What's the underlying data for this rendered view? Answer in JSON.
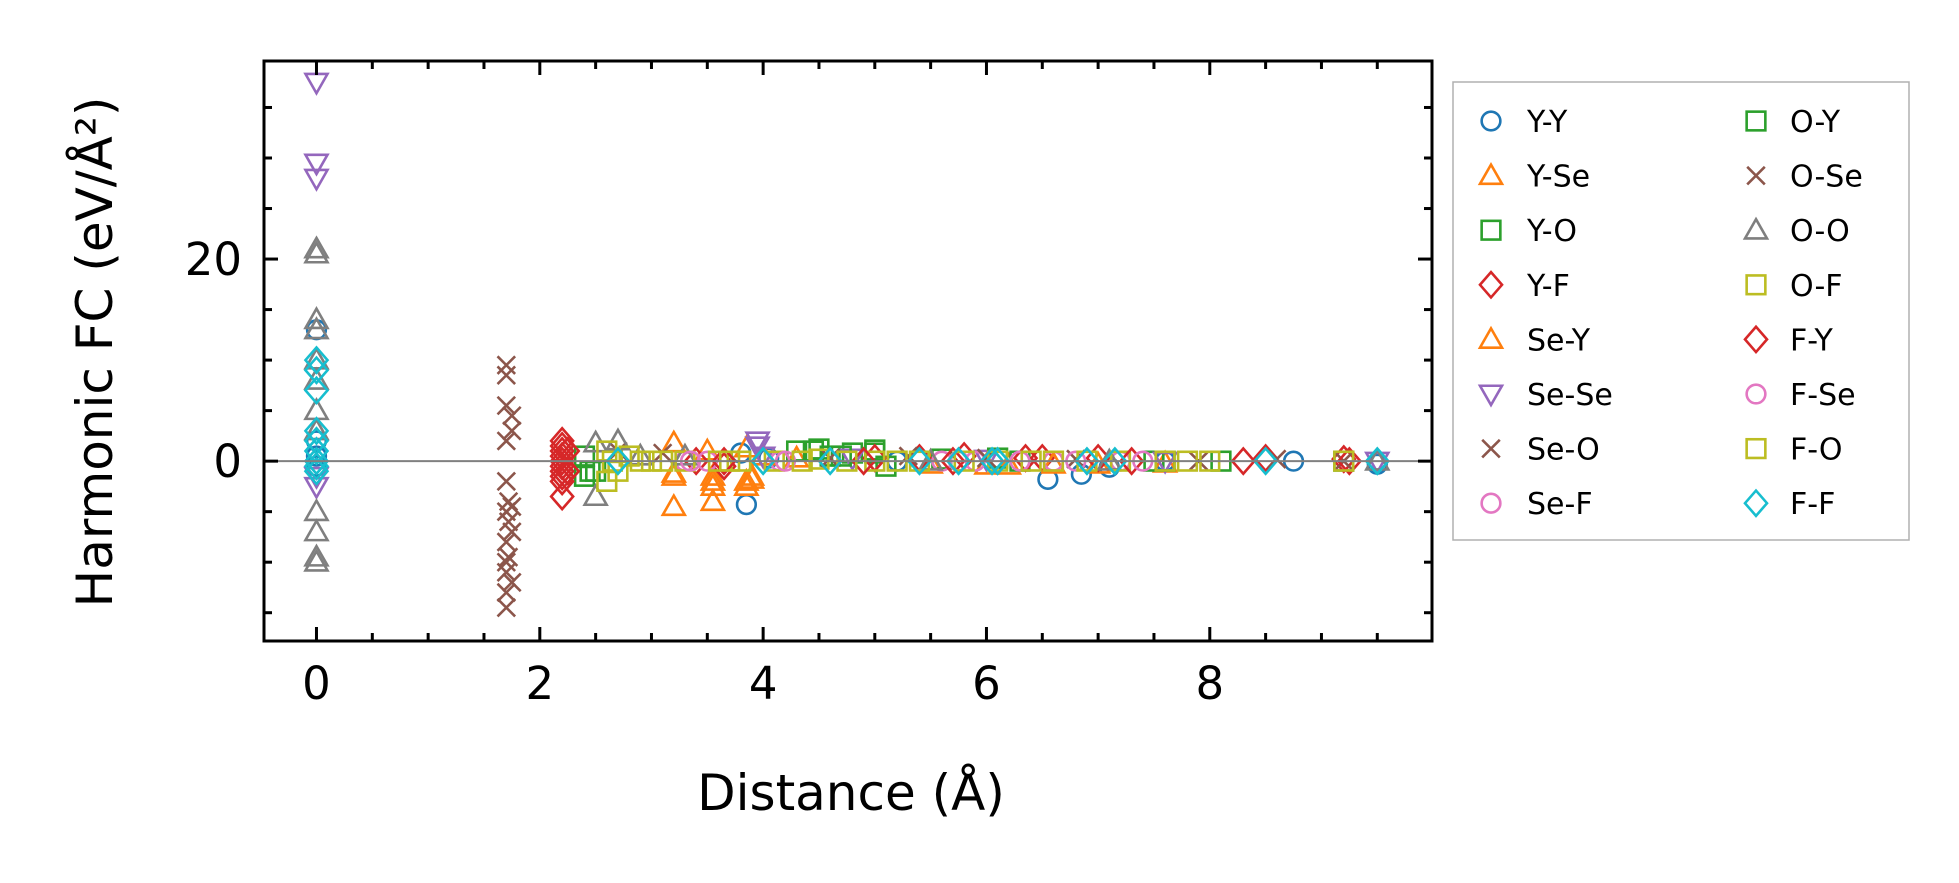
{
  "chart_data": {
    "type": "scatter",
    "title": "",
    "xlabel": "Distance (Å)",
    "ylabel": "Harmonic FC (eV/Å²)",
    "xlim": [
      -0.47,
      9.99
    ],
    "ylim": [
      -17.8,
      39.6
    ],
    "xticks": [
      0,
      2,
      4,
      6,
      8
    ],
    "xtick_labels": [
      "0",
      "2",
      "4",
      "6",
      "8"
    ],
    "yticks": [
      0,
      20
    ],
    "ytick_labels": [
      "0",
      "20"
    ],
    "x_minor_step": 0.5,
    "y_minor_step": 5,
    "zero_line": true,
    "grid": false,
    "legend_position": "outside-right",
    "series": [
      {
        "name": "Y-Y",
        "marker": "circle",
        "color": "#1f77b4",
        "points": [
          [
            0,
            13
          ],
          [
            0,
            2
          ],
          [
            0,
            0.5
          ],
          [
            0,
            -0.5
          ],
          [
            3.85,
            -4.3
          ],
          [
            3.8,
            0.8
          ],
          [
            4.05,
            0.3
          ],
          [
            5.2,
            0
          ],
          [
            6.55,
            -1.8
          ],
          [
            6.85,
            -1.3
          ],
          [
            7.1,
            -0.6
          ],
          [
            7.6,
            0
          ],
          [
            8.75,
            0
          ],
          [
            9.5,
            -0.3
          ]
        ]
      },
      {
        "name": "Y-Se",
        "marker": "triangle-up",
        "color": "#ff7f0e",
        "points": [
          [
            3.2,
            1.8
          ],
          [
            3.2,
            -4.5
          ],
          [
            3.2,
            -1.2
          ],
          [
            3.5,
            1
          ],
          [
            3.55,
            -4
          ],
          [
            3.55,
            -2.5
          ],
          [
            3.55,
            -1.5
          ],
          [
            3.85,
            1.3
          ],
          [
            3.85,
            -2
          ],
          [
            3.9,
            -1.5
          ],
          [
            4.3,
            0.3
          ],
          [
            5.5,
            -0.3
          ],
          [
            6.2,
            -0.4
          ],
          [
            7.0,
            -0.3
          ],
          [
            7.6,
            -0.2
          ]
        ]
      },
      {
        "name": "Y-O",
        "marker": "square",
        "color": "#2ca02c",
        "points": [
          [
            2.4,
            0.5
          ],
          [
            2.4,
            -1.5
          ],
          [
            2.5,
            -1
          ],
          [
            4.3,
            1
          ],
          [
            4.5,
            1.2
          ],
          [
            4.6,
            0.5
          ],
          [
            4.8,
            0.8
          ],
          [
            5.0,
            0.8
          ],
          [
            5.1,
            -0.5
          ],
          [
            5.6,
            0.2
          ],
          [
            6.3,
            0
          ],
          [
            7.5,
            0
          ],
          [
            9.2,
            0
          ]
        ]
      },
      {
        "name": "Y-F",
        "marker": "diamond",
        "color": "#d62728",
        "points": [
          [
            2.2,
            2
          ],
          [
            2.2,
            1.5
          ],
          [
            2.2,
            1
          ],
          [
            2.2,
            0.5
          ],
          [
            2.2,
            0
          ],
          [
            2.2,
            -0.5
          ],
          [
            2.2,
            -1
          ],
          [
            2.2,
            -1.5
          ],
          [
            2.2,
            -2
          ],
          [
            2.2,
            -3.5
          ],
          [
            3.4,
            0
          ],
          [
            3.65,
            -0.5
          ],
          [
            5.0,
            0.3
          ],
          [
            5.4,
            0.3
          ],
          [
            5.8,
            0.5
          ],
          [
            6.5,
            0.3
          ],
          [
            7.0,
            0.3
          ],
          [
            8.5,
            0.3
          ],
          [
            9.2,
            0.2
          ]
        ]
      },
      {
        "name": "Se-Y",
        "marker": "triangle-up",
        "color": "#ff7f0e",
        "points": [
          [
            3.2,
            -1.5
          ],
          [
            3.55,
            -2
          ],
          [
            3.85,
            -2.5
          ],
          [
            3.9,
            -1.8
          ],
          [
            4.0,
            0.5
          ],
          [
            6.0,
            -0.4
          ],
          [
            6.6,
            -0.3
          ]
        ]
      },
      {
        "name": "Se-Se",
        "marker": "triangle-down",
        "color": "#9467bd",
        "points": [
          [
            0,
            37.5
          ],
          [
            0,
            29.5
          ],
          [
            0,
            28
          ],
          [
            0,
            -1.5
          ],
          [
            0,
            -2.5
          ],
          [
            3.95,
            1.5
          ],
          [
            3.95,
            2
          ],
          [
            4.0,
            0.5
          ],
          [
            4.8,
            0.3
          ],
          [
            6.0,
            0.2
          ],
          [
            7.6,
            0
          ],
          [
            9.5,
            0
          ]
        ]
      },
      {
        "name": "Se-O",
        "marker": "x",
        "color": "#8c564b",
        "points": [
          [
            1.7,
            9.5
          ],
          [
            1.7,
            8.5
          ],
          [
            1.7,
            5.5
          ],
          [
            1.75,
            4.5
          ],
          [
            1.75,
            3
          ],
          [
            1.7,
            2
          ],
          [
            1.7,
            -2
          ],
          [
            1.72,
            -4
          ],
          [
            1.75,
            -4.5
          ],
          [
            1.7,
            -5
          ],
          [
            1.72,
            -6
          ],
          [
            1.75,
            -7
          ],
          [
            1.7,
            -8
          ]
        ]
      },
      {
        "name": "Se-F",
        "marker": "circle",
        "color": "#e377c2",
        "points": [
          [
            3.3,
            0
          ],
          [
            3.5,
            0
          ],
          [
            4.15,
            0
          ],
          [
            5.6,
            0
          ],
          [
            5.9,
            0
          ],
          [
            6.6,
            0
          ],
          [
            7.2,
            0
          ]
        ]
      },
      {
        "name": "O-Y",
        "marker": "square",
        "color": "#2ca02c",
        "points": [
          [
            2.45,
            -1
          ],
          [
            4.45,
            1
          ],
          [
            4.7,
            0.5
          ],
          [
            5.0,
            1.1
          ],
          [
            6.1,
            0.3
          ],
          [
            7.6,
            0
          ],
          [
            8.1,
            0
          ]
        ]
      },
      {
        "name": "O-Se",
        "marker": "x",
        "color": "#8c564b",
        "points": [
          [
            1.72,
            -9.5
          ],
          [
            1.7,
            -10
          ],
          [
            1.7,
            -11
          ],
          [
            1.75,
            -12
          ],
          [
            1.7,
            -13
          ],
          [
            1.7,
            -14.5
          ],
          [
            2.7,
            1
          ],
          [
            3.1,
            0.8
          ],
          [
            4.6,
            0.3
          ],
          [
            5.3,
            0.5
          ],
          [
            6.0,
            0.3
          ],
          [
            6.8,
            0.2
          ],
          [
            7.9,
            0
          ],
          [
            8.6,
            0.2
          ],
          [
            9.2,
            0
          ]
        ]
      },
      {
        "name": "O-O",
        "marker": "triangle-up",
        "color": "#7f7f7f",
        "points": [
          [
            0,
            21
          ],
          [
            0,
            20.5
          ],
          [
            0,
            14
          ],
          [
            0,
            13
          ],
          [
            0,
            10
          ],
          [
            0,
            8
          ],
          [
            0,
            5
          ],
          [
            0,
            3
          ],
          [
            0,
            -5
          ],
          [
            0,
            -7
          ],
          [
            0,
            -10
          ],
          [
            0,
            -9.5
          ],
          [
            2.5,
            -3.5
          ],
          [
            2.5,
            1.8
          ],
          [
            2.7,
            2
          ],
          [
            2.9,
            0.5
          ],
          [
            3.3,
            0.5
          ],
          [
            5.5,
            0
          ],
          [
            7.1,
            0
          ],
          [
            9.5,
            0
          ]
        ]
      },
      {
        "name": "O-F",
        "marker": "square",
        "color": "#bcbd22",
        "points": [
          [
            2.6,
            1
          ],
          [
            2.6,
            -2
          ],
          [
            2.7,
            -1
          ],
          [
            2.9,
            0
          ],
          [
            3.1,
            0
          ],
          [
            3.3,
            0
          ],
          [
            3.6,
            0
          ],
          [
            3.8,
            0
          ],
          [
            4.1,
            0
          ],
          [
            4.5,
            0.2
          ],
          [
            5.0,
            0
          ],
          [
            5.4,
            0
          ],
          [
            6.1,
            0
          ],
          [
            6.6,
            0
          ],
          [
            7.2,
            0
          ],
          [
            7.6,
            0
          ],
          [
            8.0,
            0
          ]
        ]
      },
      {
        "name": "F-Y",
        "marker": "diamond",
        "color": "#d62728",
        "points": [
          [
            2.25,
            1
          ],
          [
            2.25,
            -1
          ],
          [
            3.65,
            0
          ],
          [
            4.9,
            0
          ],
          [
            5.7,
            0
          ],
          [
            6.35,
            0.3
          ],
          [
            7.3,
            0
          ],
          [
            8.3,
            0
          ],
          [
            9.25,
            0
          ]
        ]
      },
      {
        "name": "F-Se",
        "marker": "circle",
        "color": "#e377c2",
        "points": [
          [
            3.35,
            0
          ],
          [
            4.2,
            0
          ],
          [
            5.75,
            0
          ],
          [
            6.3,
            0
          ],
          [
            6.8,
            0
          ],
          [
            7.4,
            0
          ]
        ]
      },
      {
        "name": "F-O",
        "marker": "square",
        "color": "#bcbd22",
        "points": [
          [
            2.65,
            0
          ],
          [
            2.8,
            0.5
          ],
          [
            3.0,
            0
          ],
          [
            3.7,
            0
          ],
          [
            4.35,
            0
          ],
          [
            4.75,
            0
          ],
          [
            5.2,
            0
          ],
          [
            5.8,
            0
          ],
          [
            6.4,
            0
          ],
          [
            6.9,
            0
          ],
          [
            7.8,
            0
          ],
          [
            9.2,
            0
          ]
        ]
      },
      {
        "name": "F-F",
        "marker": "diamond",
        "color": "#17becf",
        "points": [
          [
            0,
            10
          ],
          [
            0,
            9
          ],
          [
            0,
            7
          ],
          [
            0,
            3
          ],
          [
            0,
            2
          ],
          [
            0,
            1
          ],
          [
            0,
            0
          ],
          [
            0,
            -0.5
          ],
          [
            0,
            -1
          ],
          [
            2.7,
            0
          ],
          [
            4.0,
            0
          ],
          [
            4.6,
            0
          ],
          [
            5.4,
            0
          ],
          [
            5.75,
            0
          ],
          [
            6.05,
            0
          ],
          [
            6.1,
            0
          ],
          [
            6.9,
            0
          ],
          [
            7.15,
            0
          ],
          [
            8.5,
            0
          ],
          [
            9.5,
            0
          ]
        ]
      }
    ]
  }
}
